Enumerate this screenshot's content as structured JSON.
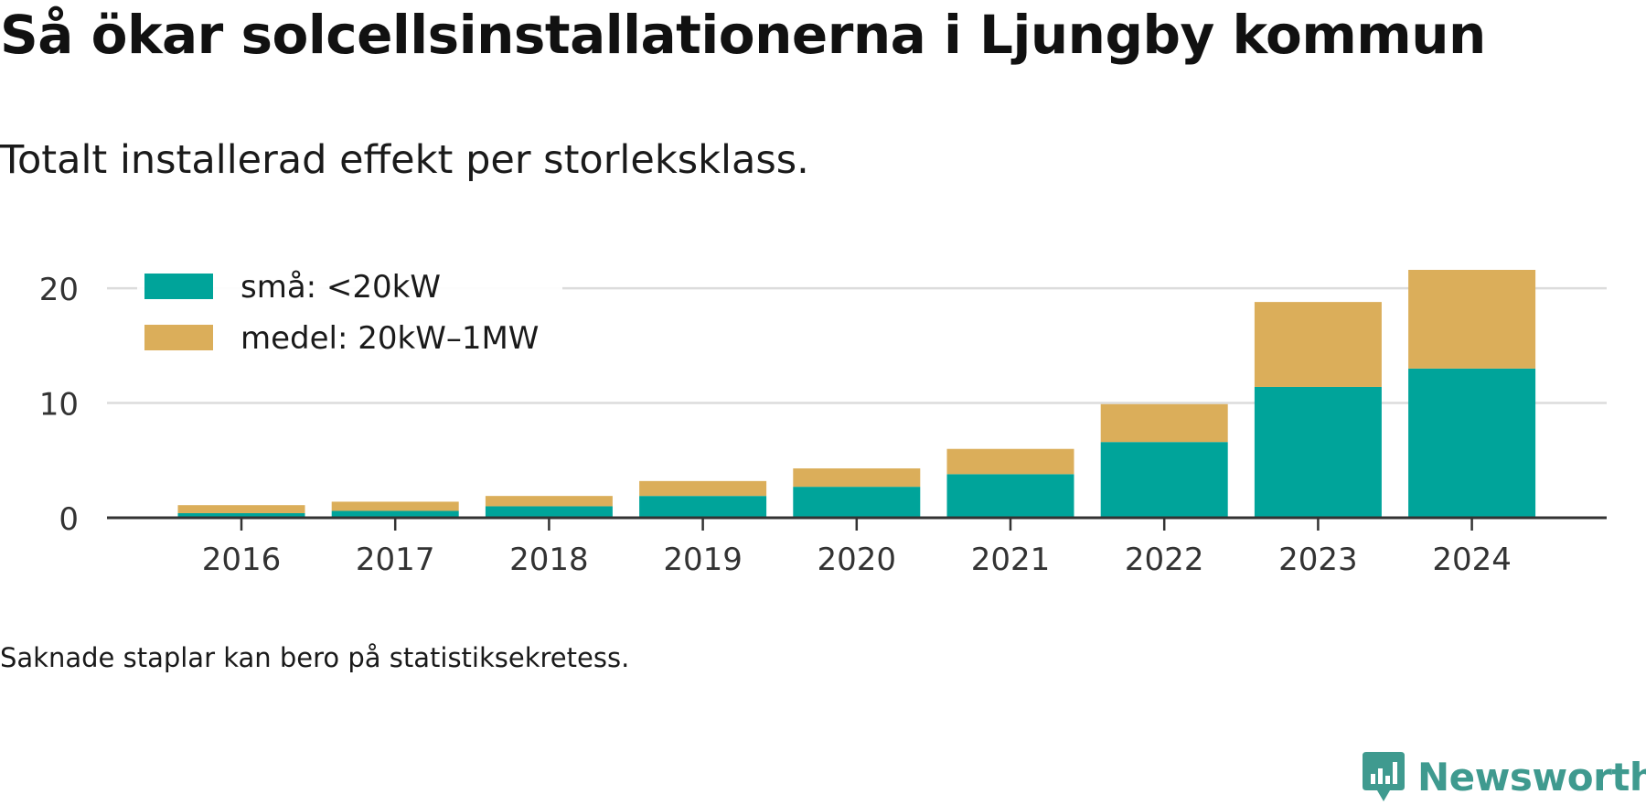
{
  "title": "Så ökar solcellsinstallationerna i Ljungby kommun",
  "subtitle": "Totalt installerad effekt per storleksklass.",
  "footnote": "Saknade staplar kan bero på statistiksekretess.",
  "brand": {
    "name": "Newsworthy",
    "icon": "newsworthy-logo-icon",
    "color": "#3f9a8f"
  },
  "chart_data": {
    "type": "bar",
    "stacked": true,
    "categories": [
      "2016",
      "2017",
      "2018",
      "2019",
      "2020",
      "2021",
      "2022",
      "2023",
      "2024"
    ],
    "series": [
      {
        "name": "små: <20kW",
        "color": "#00a49a",
        "values": [
          0.4,
          0.6,
          1.0,
          1.9,
          2.7,
          3.8,
          6.6,
          11.4,
          13.0
        ]
      },
      {
        "name": "medel: 20kW–1MW",
        "color": "#dbae5a",
        "values": [
          0.7,
          0.8,
          0.9,
          1.3,
          1.6,
          2.2,
          3.3,
          7.4,
          8.6
        ]
      }
    ],
    "yticks": [
      0,
      10,
      20
    ],
    "ylim": [
      0,
      21.6
    ],
    "xlabel": "",
    "ylabel": "",
    "grid": true,
    "legend": "top-left"
  }
}
